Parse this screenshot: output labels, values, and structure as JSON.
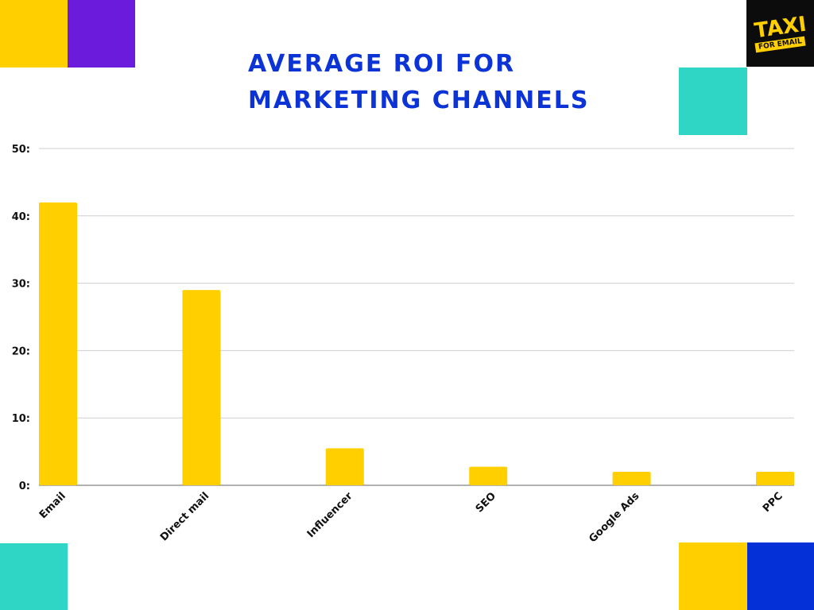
{
  "title_line1": "AVERAGE ROI FOR",
  "title_line2": "MARKETING CHANNELS",
  "logo": {
    "top": "TAXI",
    "bottom": "FOR EMAIL"
  },
  "colors": {
    "bar": "#ffcf00",
    "title": "#0b33d6",
    "yellow": "#ffcf00",
    "purple": "#6a1bdc",
    "teal": "#2fd6c6",
    "blue": "#0430d8",
    "grid": "#cfcfcf",
    "axis": "#666666"
  },
  "chart_data": {
    "type": "bar",
    "categories": [
      "Email",
      "Direct mail",
      "Influencer",
      "SEO",
      "Google Ads",
      "PPC"
    ],
    "values": [
      42,
      29,
      5.5,
      2.75,
      2,
      2
    ],
    "yticks": [
      "0:",
      "10:",
      "20:",
      "30:",
      "40:",
      "50:"
    ],
    "ylim": [
      0,
      50
    ],
    "grid": true
  }
}
